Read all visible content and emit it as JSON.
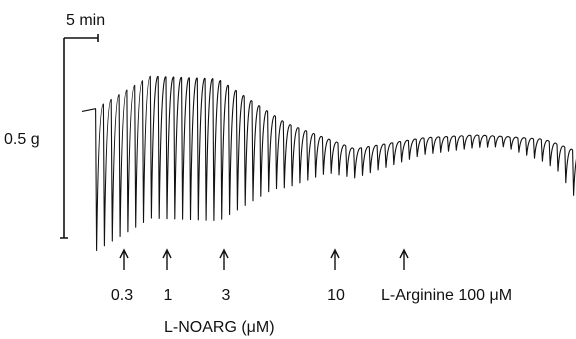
{
  "chart_data": {
    "type": "line",
    "title": "",
    "scale_bars": {
      "time": "5 min",
      "force": "0.5 g"
    },
    "trace": {
      "description_points": [
        {
          "t_min": 0.0,
          "baseline_g": 1.16
        },
        {
          "t_min": 2.0,
          "baseline_g": 1.18
        },
        {
          "t_min": 10.0,
          "baseline_g": 1.42
        },
        {
          "t_min": 20.0,
          "baseline_g": 1.4
        },
        {
          "t_min": 30.0,
          "baseline_g": 1.07
        },
        {
          "t_min": 40.0,
          "baseline_g": 0.88
        },
        {
          "t_min": 50.0,
          "baseline_g": 0.96
        },
        {
          "t_min": 58.0,
          "baseline_g": 0.98
        },
        {
          "t_min": 68.0,
          "baseline_g": 0.95
        },
        {
          "t_min": 75.0,
          "baseline_g": 0.82
        },
        {
          "t_min": 86.0,
          "baseline_g": 0.68
        }
      ],
      "contraction_depth_g": [
        {
          "t_min": 0.0,
          "depth_g": 1.05
        },
        {
          "t_min": 20.0,
          "depth_g": 1.05
        },
        {
          "t_min": 28.0,
          "depth_g": 0.55
        },
        {
          "t_min": 36.0,
          "depth_g": 0.25
        },
        {
          "t_min": 50.0,
          "depth_g": 0.12
        },
        {
          "t_min": 62.0,
          "depth_g": 0.07
        },
        {
          "t_min": 70.0,
          "depth_g": 0.2
        },
        {
          "t_min": 74.0,
          "depth_g": 0.45
        },
        {
          "t_min": 84.0,
          "depth_g": 0.6
        },
        {
          "t_min": 86.0,
          "depth_g": 0.0
        }
      ]
    },
    "annotations": [
      {
        "label": "0.3",
        "t_min": 8.5
      },
      {
        "label": "1",
        "t_min": 16.5
      },
      {
        "label": "3",
        "t_min": 27.5
      },
      {
        "label": "10",
        "t_min": 49.0
      },
      {
        "label": "L-Arginine 100 μM",
        "t_min": 64.0
      }
    ],
    "xlabel": "L-NOARG (μM)"
  },
  "labels": {
    "time_bar": "5 min",
    "force_bar": "0.5 g",
    "dose_1": "0.3",
    "dose_2": "1",
    "dose_3": "3",
    "dose_4": "10",
    "arginine": "L-Arginine 100 μM",
    "axis_label": "L-NOARG (μM)"
  }
}
